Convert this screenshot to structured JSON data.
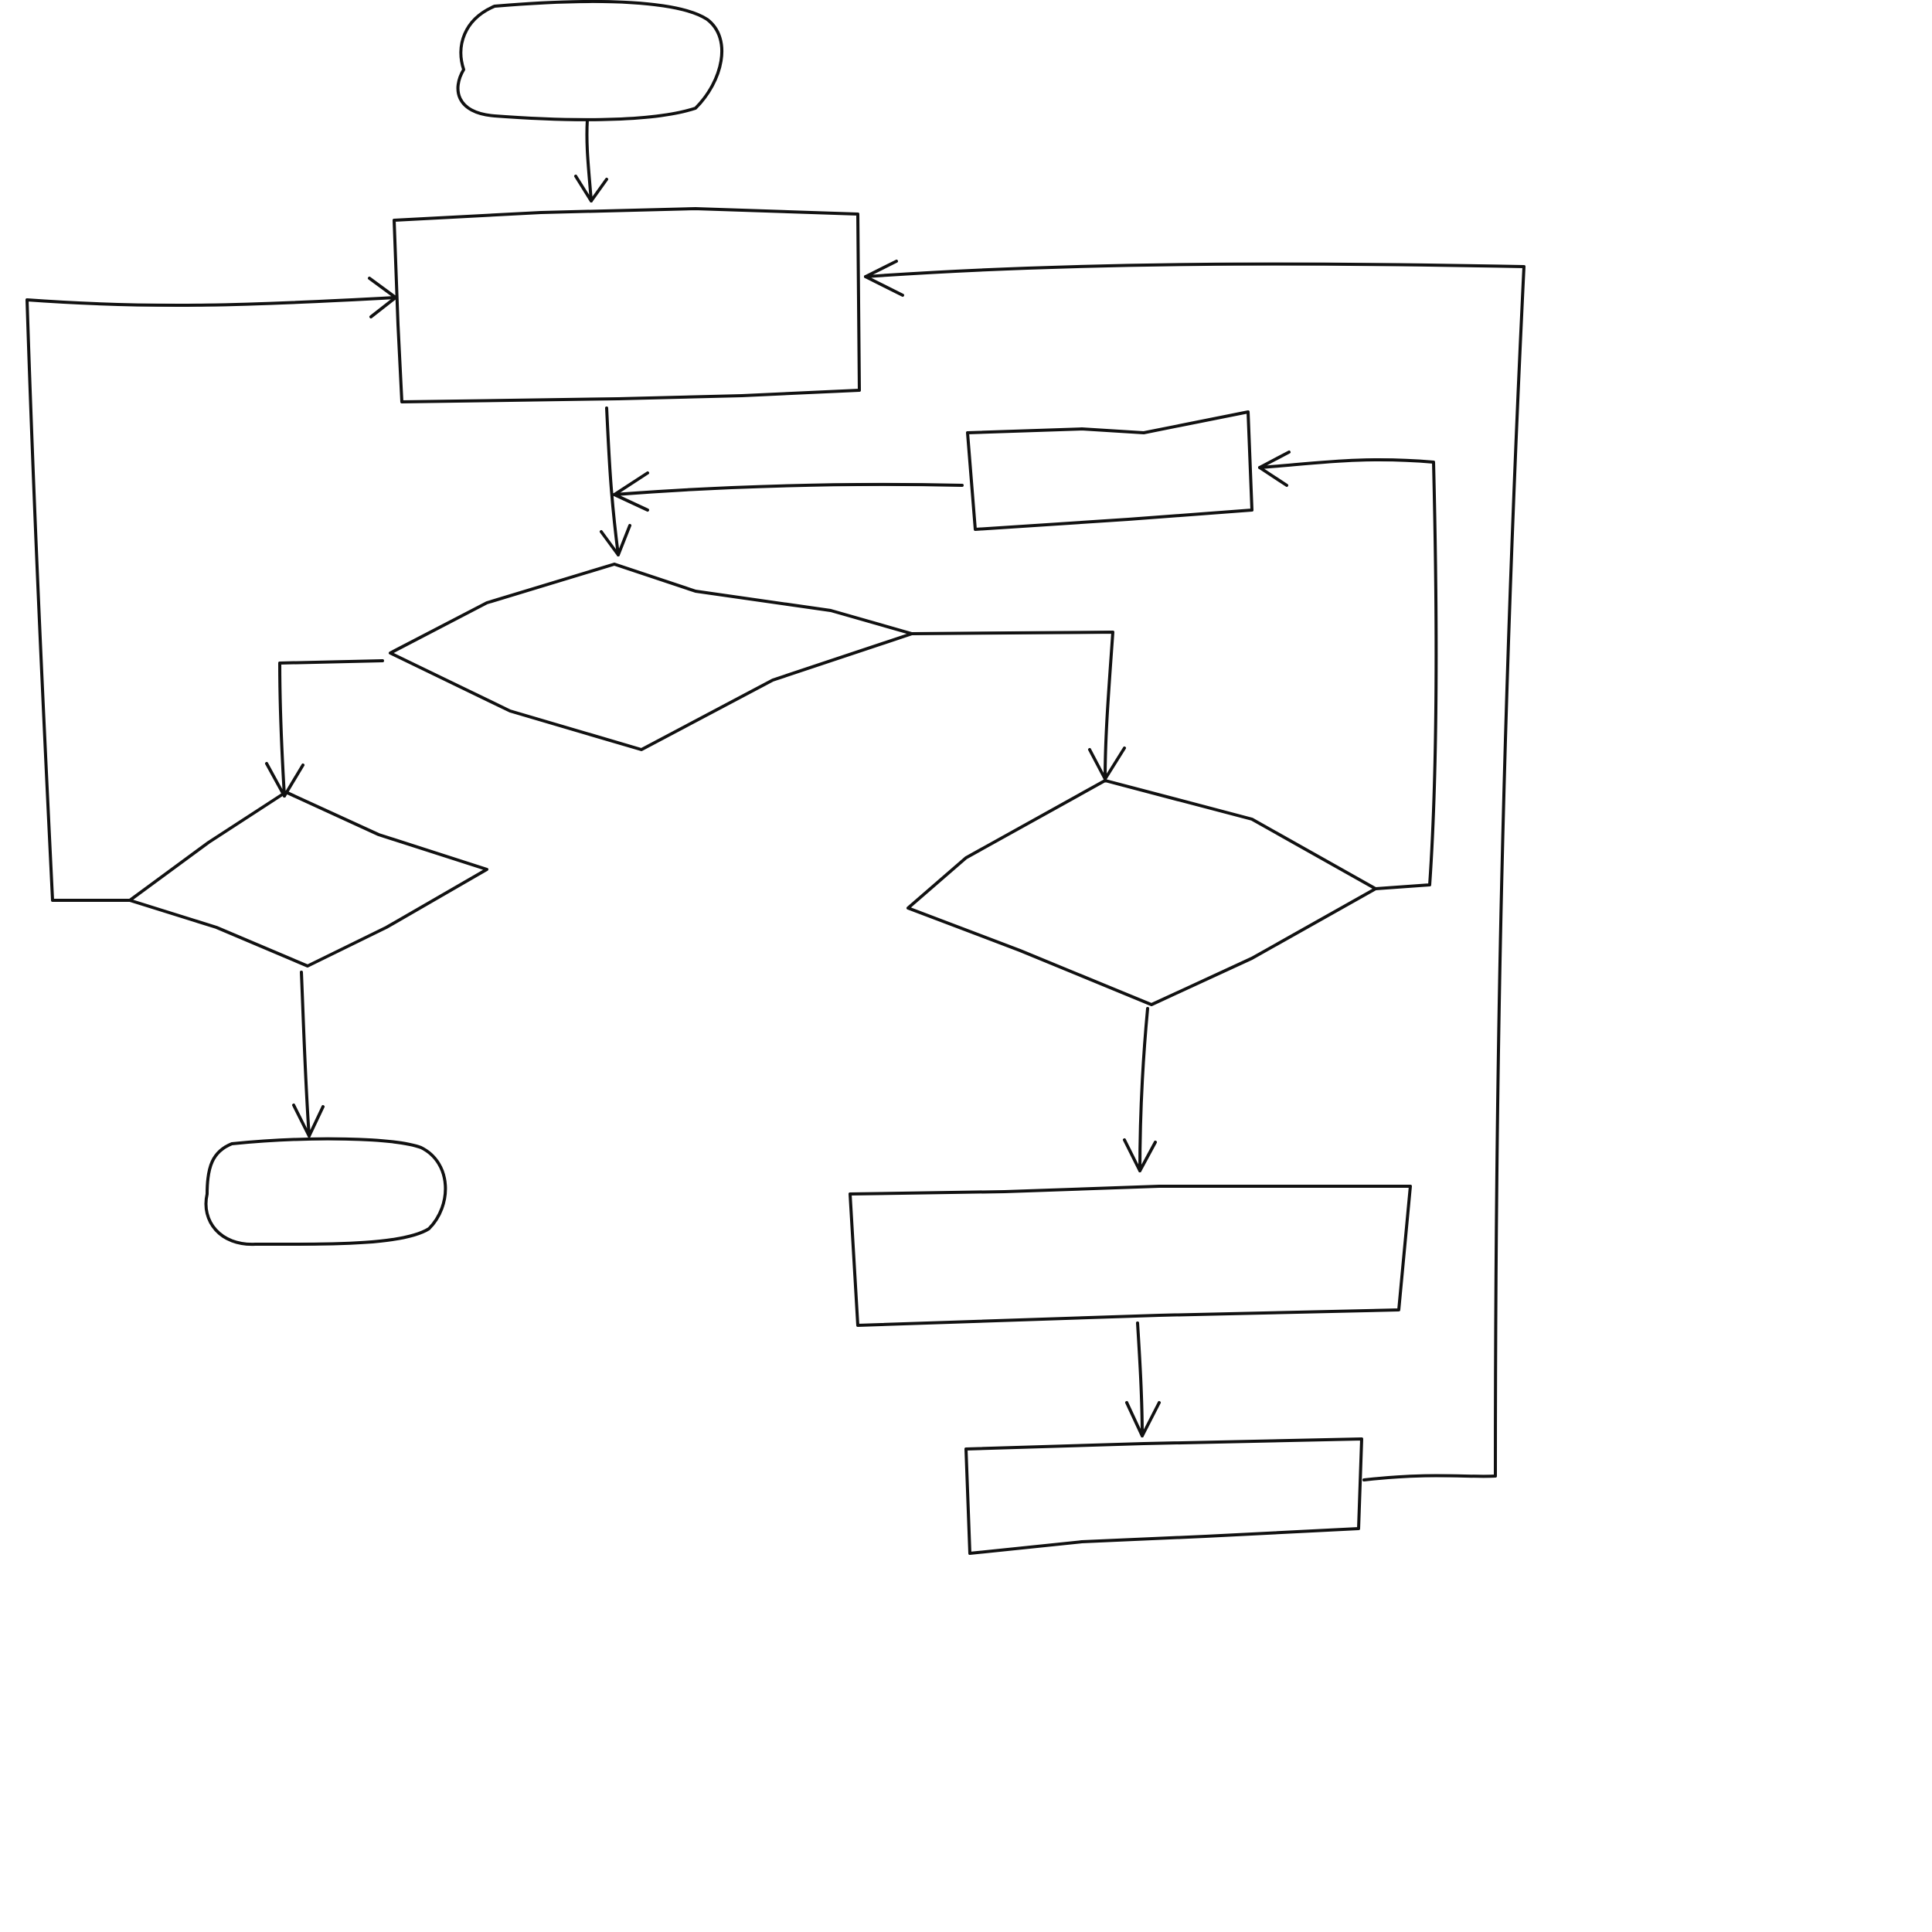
{
  "diagram": {
    "type": "flowchart",
    "style": "hand-drawn",
    "stroke_color": "#111111",
    "background_color": "#ffffff",
    "nodes": [
      {
        "id": "start",
        "shape": "terminator",
        "label": ""
      },
      {
        "id": "process-top",
        "shape": "process",
        "label": ""
      },
      {
        "id": "decision-main",
        "shape": "decision",
        "label": ""
      },
      {
        "id": "decision-left",
        "shape": "decision",
        "label": ""
      },
      {
        "id": "end",
        "shape": "terminator",
        "label": ""
      },
      {
        "id": "decision-right",
        "shape": "decision",
        "label": ""
      },
      {
        "id": "process-side",
        "shape": "process",
        "label": ""
      },
      {
        "id": "process-lower",
        "shape": "process",
        "label": ""
      },
      {
        "id": "process-bottom",
        "shape": "process",
        "label": ""
      }
    ],
    "edges": [
      {
        "from": "start",
        "to": "process-top"
      },
      {
        "from": "process-top",
        "to": "decision-main"
      },
      {
        "from": "decision-main",
        "to": "decision-left"
      },
      {
        "from": "decision-main",
        "to": "decision-right"
      },
      {
        "from": "decision-left",
        "to": "end"
      },
      {
        "from": "decision-left",
        "to": "process-top"
      },
      {
        "from": "decision-right",
        "to": "process-side"
      },
      {
        "from": "process-side",
        "to": "decision-main"
      },
      {
        "from": "decision-right",
        "to": "process-lower"
      },
      {
        "from": "process-lower",
        "to": "process-bottom"
      },
      {
        "from": "process-bottom",
        "to": "process-top"
      }
    ]
  }
}
